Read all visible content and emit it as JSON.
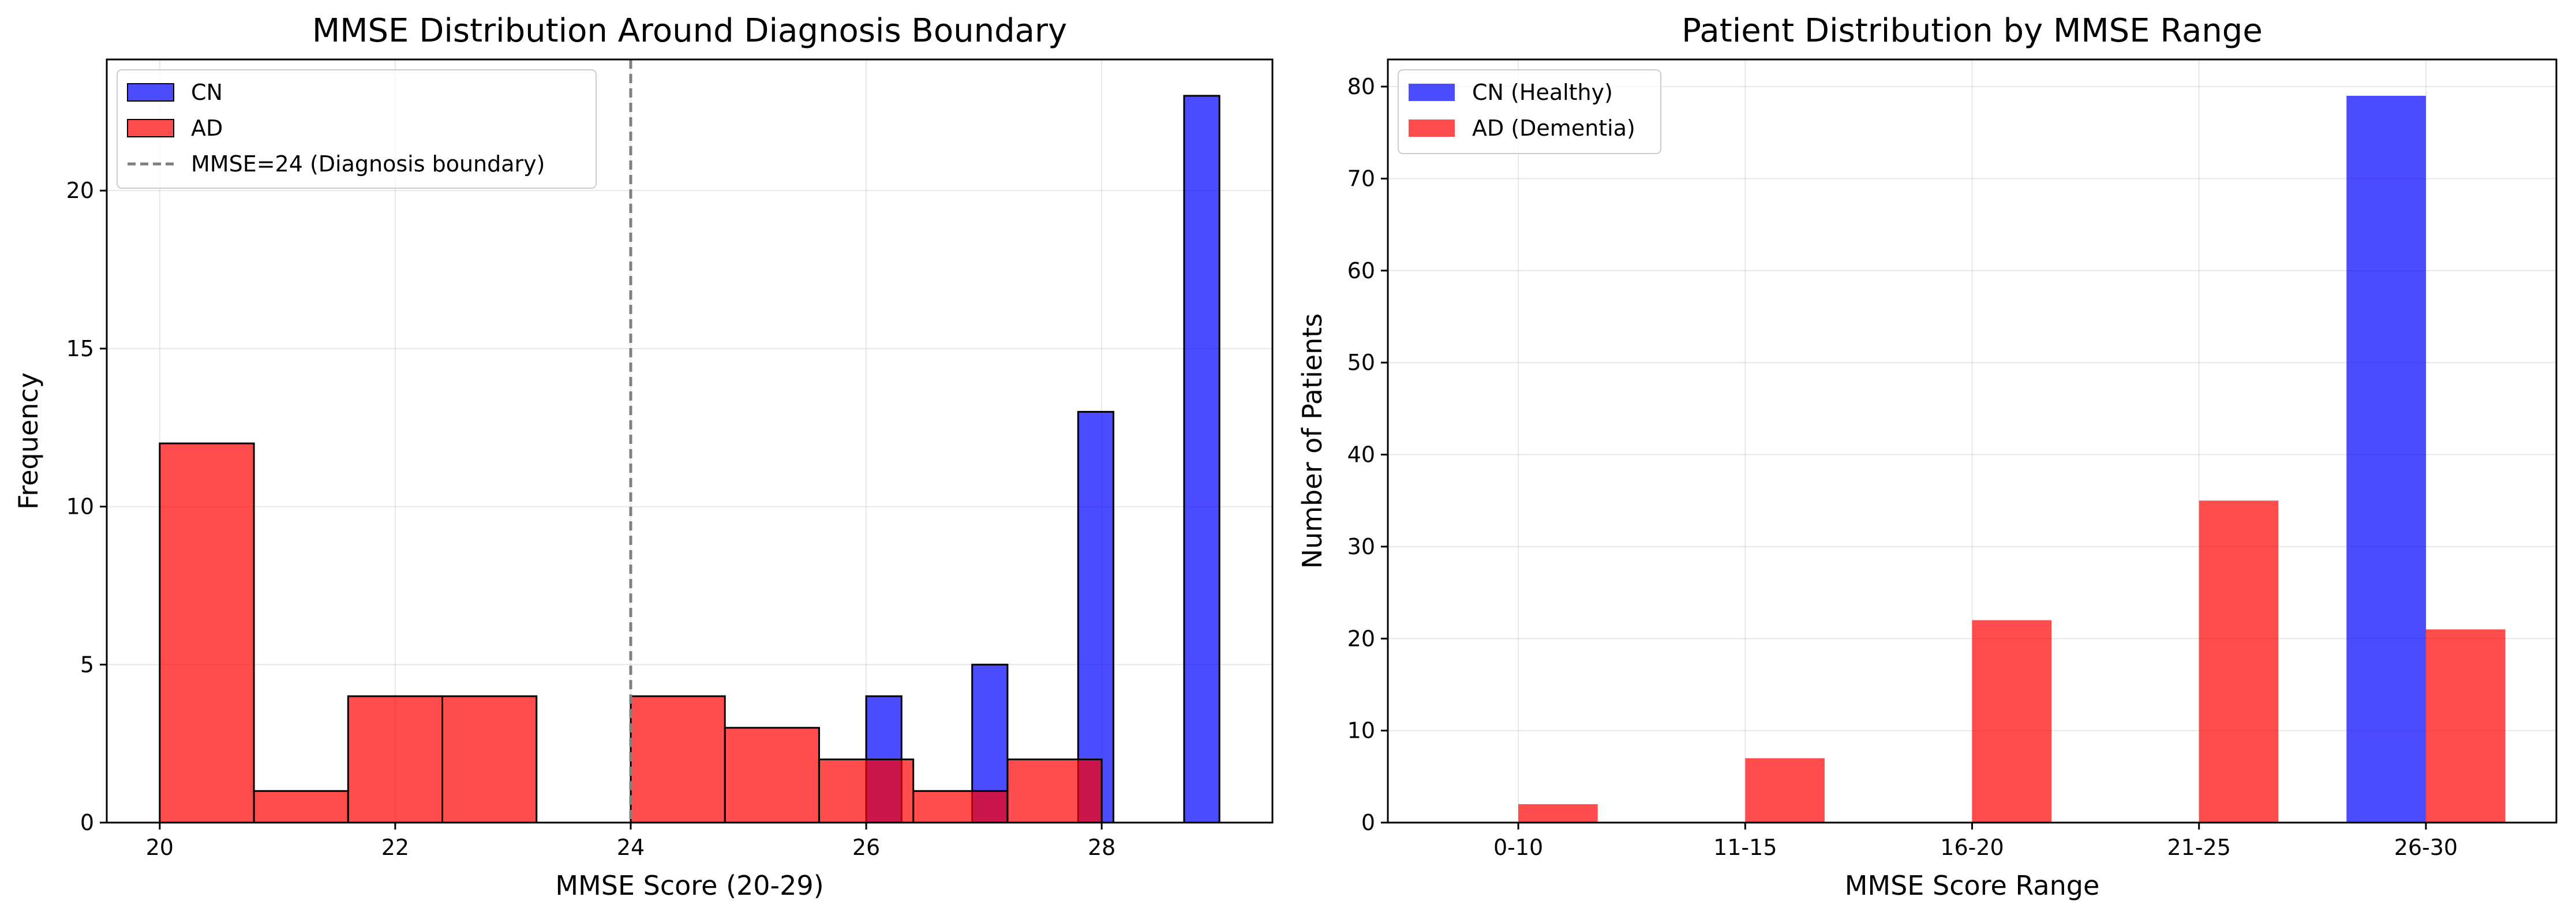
{
  "chart_data": [
    {
      "type": "bar",
      "subtype": "histogram",
      "title": "MMSE Distribution Around Diagnosis Boundary",
      "xlabel": "MMSE Score (20-29)",
      "ylabel": "Frequency",
      "xlim": [
        19.55,
        29.45
      ],
      "ylim": [
        0,
        24.15
      ],
      "xticks": [
        20,
        22,
        24,
        26,
        28
      ],
      "yticks": [
        0,
        5,
        10,
        15,
        20
      ],
      "grid": true,
      "legend_position": "top-left",
      "series": [
        {
          "name": "CN",
          "color": "#0000ff",
          "bins": [
            {
              "x0": 26.0,
              "x1": 26.3,
              "value": 4
            },
            {
              "x0": 26.9,
              "x1": 27.2,
              "value": 5
            },
            {
              "x0": 27.8,
              "x1": 28.1,
              "value": 13
            },
            {
              "x0": 28.7,
              "x1": 29.0,
              "value": 23
            }
          ]
        },
        {
          "name": "AD",
          "color": "#ff0000",
          "bins": [
            {
              "x0": 20.0,
              "x1": 20.8,
              "value": 12
            },
            {
              "x0": 20.8,
              "x1": 21.6,
              "value": 1
            },
            {
              "x0": 21.6,
              "x1": 22.4,
              "value": 4
            },
            {
              "x0": 22.4,
              "x1": 23.2,
              "value": 4
            },
            {
              "x0": 23.2,
              "x1": 24.0,
              "value": 0
            },
            {
              "x0": 24.0,
              "x1": 24.8,
              "value": 4
            },
            {
              "x0": 24.8,
              "x1": 25.6,
              "value": 3
            },
            {
              "x0": 25.6,
              "x1": 26.4,
              "value": 2
            },
            {
              "x0": 26.4,
              "x1": 27.2,
              "value": 1
            },
            {
              "x0": 27.2,
              "x1": 28.0,
              "value": 2
            }
          ]
        }
      ],
      "reference_line": {
        "x": 24,
        "label": "MMSE=24 (Diagnosis boundary)",
        "color": "#808080",
        "style": "dashed"
      }
    },
    {
      "type": "bar",
      "title": "Patient Distribution by MMSE Range",
      "xlabel": "MMSE Score Range",
      "ylabel": "Number of Patients",
      "categories": [
        "0-10",
        "11-15",
        "16-20",
        "21-25",
        "26-30"
      ],
      "ylim": [
        0,
        82.95
      ],
      "yticks": [
        0,
        10,
        20,
        30,
        40,
        50,
        60,
        70,
        80
      ],
      "grid": true,
      "legend_position": "top-left",
      "series": [
        {
          "name": "CN (Healthy)",
          "color": "#0000ff",
          "values": [
            0,
            0,
            0,
            0,
            79
          ]
        },
        {
          "name": "AD (Dementia)",
          "color": "#ff0000",
          "values": [
            2,
            7,
            22,
            35,
            21
          ]
        }
      ]
    }
  ]
}
